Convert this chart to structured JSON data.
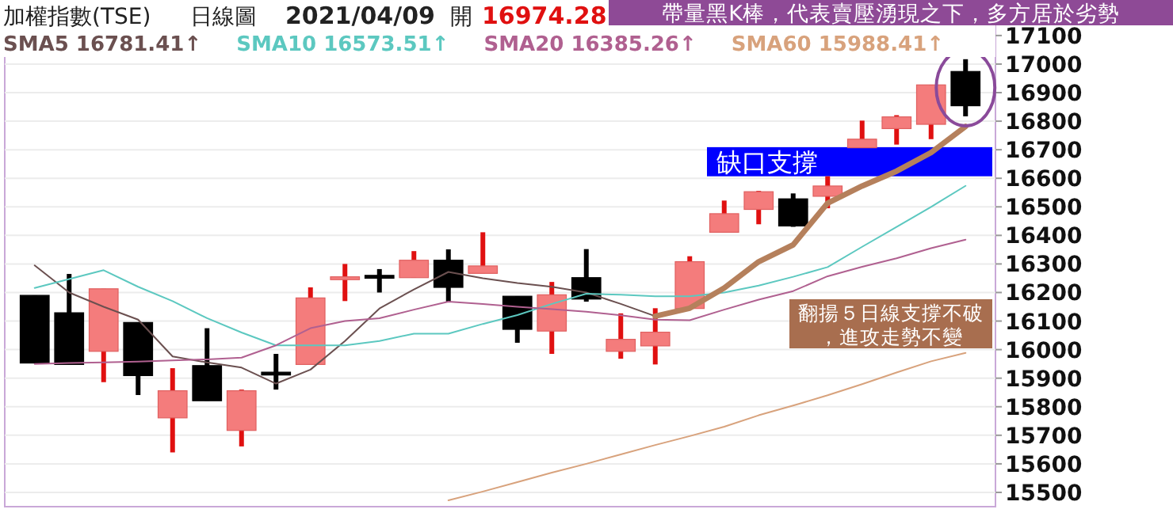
{
  "chart_data": {
    "type": "candlestick",
    "title": "加權指數(TSE)",
    "subtitle": "日線圖",
    "categories": [
      null,
      null,
      null,
      null,
      null,
      null,
      null,
      null,
      null,
      null,
      null,
      null,
      null,
      null,
      null,
      null,
      null,
      null,
      null,
      null,
      null,
      null,
      null,
      null,
      null,
      null,
      null,
      null
    ],
    "ohlc": [
      [
        16190,
        16190,
        15953,
        15953
      ],
      [
        16129,
        16265,
        15948,
        15948
      ],
      [
        15994,
        16213,
        15886,
        16213
      ],
      [
        16095,
        16095,
        15841,
        15909
      ],
      [
        15761,
        15935,
        15640,
        15856
      ],
      [
        15944,
        16075,
        15821,
        15821
      ],
      [
        15717,
        15860,
        15661,
        15856
      ],
      [
        15921,
        15985,
        15860,
        15911
      ],
      [
        15948,
        16218,
        15948,
        16181
      ],
      [
        16245,
        16300,
        16170,
        16255
      ],
      [
        16260,
        16282,
        16200,
        16250
      ],
      [
        16252,
        16345,
        16252,
        16313
      ],
      [
        16313,
        16351,
        16168,
        16218
      ],
      [
        16267,
        16411,
        16267,
        16293
      ],
      [
        16187,
        16187,
        16024,
        16071
      ],
      [
        16065,
        16237,
        15985,
        16192
      ],
      [
        16252,
        16352,
        16168,
        16177
      ],
      [
        15994,
        16127,
        15968,
        16036
      ],
      [
        16013,
        16145,
        15948,
        16061
      ],
      [
        16144,
        16327,
        16144,
        16308
      ],
      [
        16411,
        16522,
        16411,
        16476
      ],
      [
        16491,
        16556,
        16439,
        16553
      ],
      [
        16528,
        16547,
        16430,
        16433
      ],
      [
        16537,
        16607,
        16495,
        16573
      ],
      [
        16707,
        16802,
        16707,
        16737
      ],
      [
        16774,
        16821,
        16718,
        16815
      ],
      [
        16789,
        16927,
        16737,
        16927
      ],
      [
        16974,
        17017,
        16817,
        16854
      ]
    ],
    "colors": [
      "#000000",
      "#000000",
      "#f47c7c",
      "#000000",
      "#f47c7c",
      "#000000",
      "#f47c7c",
      "#000000",
      "#f47c7c",
      "#f47c7c",
      "#000000",
      "#f47c7c",
      "#000000",
      "#f47c7c",
      "#000000",
      "#f47c7c",
      "#000000",
      "#f47c7c",
      "#f47c7c",
      "#f47c7c",
      "#f47c7c",
      "#f47c7c",
      "#000000",
      "#f47c7c",
      "#f47c7c",
      "#f47c7c",
      "#f47c7c",
      "#000000"
    ],
    "series": [
      {
        "type": "line",
        "name": "SMA5 16781.41↑",
        "color": "#6b5050",
        "values": [
          16295,
          16200,
          16150,
          16105,
          15976,
          15955,
          15937,
          15881,
          15930,
          16030,
          16144,
          16211,
          16272,
          16250,
          16233,
          16220,
          16200,
          16160,
          16117,
          16145,
          16216,
          16308,
          16367,
          16513,
          16573,
          16625,
          16690,
          16781.41
        ]
      },
      {
        "type": "line",
        "name": "SMA10 16573.51↑",
        "color": "#5cc8c0",
        "values": [
          16216,
          16247,
          16278,
          16220,
          16170,
          16110,
          16060,
          16015,
          16015,
          16015,
          16030,
          16056,
          16056,
          16090,
          16121,
          16160,
          16196,
          16192,
          16187,
          16187,
          16200,
          16224,
          16255,
          16289,
          16360,
          16430,
          16500,
          16573.51
        ]
      },
      {
        "type": "line",
        "name": "SMA20 16385.26↑",
        "color": "#b06090",
        "values": [
          15950,
          15953,
          15955,
          15958,
          15962,
          15966,
          15972,
          16015,
          16075,
          16100,
          16110,
          16140,
          16168,
          16160,
          16150,
          16142,
          16133,
          16120,
          16105,
          16103,
          16140,
          16175,
          16205,
          16257,
          16290,
          16320,
          16355,
          16385.26
        ]
      },
      {
        "type": "line",
        "name": "SMA60 15988.41↑",
        "color": "#d8a27c",
        "values": [
          null,
          null,
          null,
          null,
          null,
          null,
          null,
          null,
          null,
          null,
          null,
          null,
          15472,
          15503,
          15536,
          15569,
          15600,
          15633,
          15666,
          15697,
          15730,
          15770,
          15804,
          15840,
          15879,
          15920,
          15959,
          15988.41
        ]
      },
      {
        "type": "line",
        "color": "#b5805c",
        "values": [
          null,
          null,
          null,
          null,
          null,
          null,
          null,
          null,
          null,
          null,
          null,
          null,
          null,
          null,
          null,
          null,
          null,
          null,
          16117,
          16145,
          16216,
          16308,
          16367,
          16513,
          16573,
          16625,
          16690,
          16781.41
        ]
      }
    ],
    "ylim": [
      15450,
      17180
    ],
    "yticks": [
      15500,
      15600,
      15700,
      15800,
      15900,
      16000,
      16100,
      16200,
      16300,
      16400,
      16500,
      16600,
      16700,
      16800,
      16900,
      17000,
      17100
    ],
    "grid": "y",
    "legend": "top left",
    "bands": [
      {
        "axis": "y",
        "from": 16607,
        "to": 16709,
        "label": "缺口支撐",
        "color": "#0000ff"
      }
    ],
    "annotations": [
      "2021/04/09",
      "開",
      "16974.28",
      "帶量黑K棒，代表賣壓湧現之下，多方居於劣勢",
      "翻揚５日線支撐不破，進攻走勢不變"
    ]
  }
}
